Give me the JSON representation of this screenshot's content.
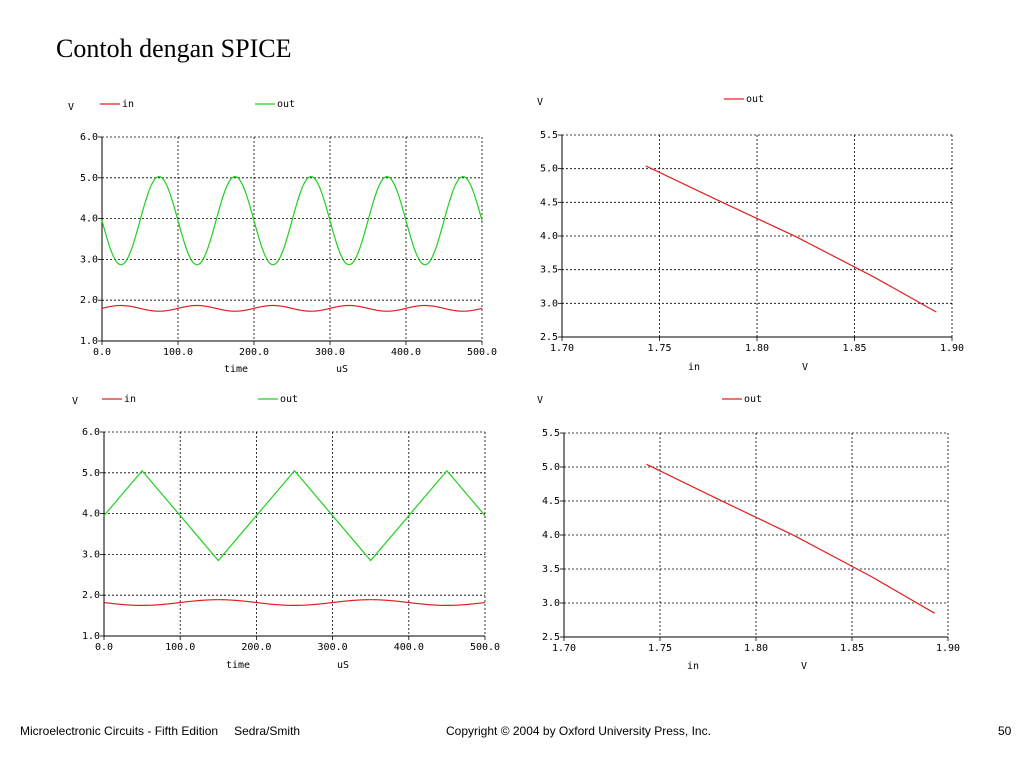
{
  "slide": {
    "title": "Contoh dengan SPICE",
    "footer_book": "Microelectronic Circuits - Fifth Edition",
    "footer_authors": "Sedra/Smith",
    "footer_copyright": "Copyright © 2004 by Oxford University Press, Inc.",
    "page_number": "50"
  },
  "colors": {
    "in": "#e02020",
    "out": "#20d020",
    "grid": "#000000"
  },
  "chart_data": [
    {
      "type": "line",
      "ylabel": "V",
      "xlabel": "time",
      "xunit": "uS",
      "xlim": [
        0,
        500
      ],
      "ylim": [
        1,
        6
      ],
      "xticks": [
        "0.0",
        "100.0",
        "200.0",
        "300.0",
        "400.0",
        "500.0"
      ],
      "yticks": [
        "1.0",
        "2.0",
        "3.0",
        "4.0",
        "5.0",
        "6.0"
      ],
      "series": [
        {
          "name": "in",
          "color": "#e02020",
          "waveform": "sine",
          "offset": 1.8,
          "amplitude": 0.07,
          "period_us": 100,
          "phase_deg": 0
        },
        {
          "name": "out",
          "color": "#20d020",
          "waveform": "sine",
          "offset": 3.95,
          "amplitude": 1.08,
          "period_us": 100,
          "phase_deg": 180
        }
      ]
    },
    {
      "type": "line",
      "ylabel": "V",
      "xlabel": "in",
      "xunit": "V",
      "xlim": [
        1.7,
        1.9
      ],
      "ylim": [
        2.5,
        5.5
      ],
      "xticks": [
        "1.70",
        "1.75",
        "1.80",
        "1.85",
        "1.90"
      ],
      "yticks": [
        "2.5",
        "3.0",
        "3.5",
        "4.0",
        "4.5",
        "5.0",
        "5.5"
      ],
      "series": [
        {
          "name": "out",
          "color": "#e02020",
          "x": [
            1.743,
            1.78,
            1.82,
            1.86,
            1.892
          ],
          "y": [
            5.04,
            4.53,
            3.99,
            3.39,
            2.87
          ]
        }
      ]
    },
    {
      "type": "line",
      "ylabel": "V",
      "xlabel": "time",
      "xunit": "uS",
      "xlim": [
        0,
        500
      ],
      "ylim": [
        1,
        6
      ],
      "xticks": [
        "0.0",
        "100.0",
        "200.0",
        "300.0",
        "400.0",
        "500.0"
      ],
      "yticks": [
        "1.0",
        "2.0",
        "3.0",
        "4.0",
        "5.0",
        "6.0"
      ],
      "series": [
        {
          "name": "in",
          "color": "#e02020",
          "waveform": "sine",
          "offset": 1.82,
          "amplitude": 0.07,
          "period_us": 200,
          "phase_deg": 180
        },
        {
          "name": "out",
          "color": "#20d020",
          "x": [
            0,
            50,
            150,
            250,
            350,
            450,
            500
          ],
          "y": [
            3.95,
            5.05,
            2.85,
            5.05,
            2.85,
            5.05,
            3.95
          ]
        }
      ]
    },
    {
      "type": "line",
      "ylabel": "V",
      "xlabel": "in",
      "xunit": "V",
      "xlim": [
        1.7,
        1.9
      ],
      "ylim": [
        2.5,
        5.5
      ],
      "xticks": [
        "1.70",
        "1.75",
        "1.80",
        "1.85",
        "1.90"
      ],
      "yticks": [
        "2.5",
        "3.0",
        "3.5",
        "4.0",
        "4.5",
        "5.0",
        "5.5"
      ],
      "series": [
        {
          "name": "out",
          "color": "#e02020",
          "x": [
            1.743,
            1.78,
            1.82,
            1.86,
            1.893
          ],
          "y": [
            5.04,
            4.53,
            3.99,
            3.39,
            2.85
          ]
        }
      ]
    }
  ]
}
